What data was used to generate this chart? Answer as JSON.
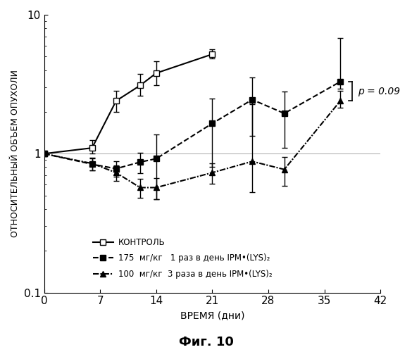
{
  "title": "Фиг. 10",
  "ylabel": "ОТНОСИТЕЛЬНЫЙ ОБЪЕМ ОПУХОЛИ",
  "xlabel": "ВРЕМЯ (дни)",
  "xlim": [
    0,
    42
  ],
  "ylim_log": [
    0.1,
    10
  ],
  "yticks": [
    0.1,
    1,
    10
  ],
  "xticks": [
    0,
    7,
    14,
    21,
    28,
    35,
    42
  ],
  "control": {
    "x": [
      0,
      6,
      9,
      12,
      14,
      21
    ],
    "y": [
      1.0,
      1.1,
      2.4,
      3.1,
      3.8,
      5.2
    ],
    "yerr_lo": [
      0.0,
      0.1,
      0.4,
      0.5,
      0.7,
      0.35
    ],
    "yerr_hi": [
      0.0,
      0.15,
      0.45,
      0.65,
      0.85,
      0.45
    ],
    "label": "КОНТРОЛЬ"
  },
  "series175": {
    "x": [
      0,
      6,
      9,
      12,
      14,
      21,
      26,
      30,
      37
    ],
    "y": [
      1.0,
      0.84,
      0.78,
      0.87,
      0.92,
      1.65,
      2.45,
      1.95,
      3.3
    ],
    "yerr_lo": [
      0.0,
      0.08,
      0.1,
      0.15,
      0.45,
      0.85,
      1.1,
      0.85,
      0.35
    ],
    "yerr_hi": [
      0.0,
      0.08,
      0.1,
      0.15,
      0.45,
      0.85,
      1.1,
      0.85,
      3.5
    ],
    "label": "175  мг/кг   1 раз в день IPM•(LYS)₂"
  },
  "series100": {
    "x": [
      0,
      6,
      9,
      12,
      14,
      21,
      26,
      30,
      37
    ],
    "y": [
      1.0,
      0.85,
      0.73,
      0.57,
      0.57,
      0.73,
      0.88,
      0.77,
      2.4
    ],
    "yerr_lo": [
      0.0,
      0.09,
      0.09,
      0.09,
      0.1,
      0.12,
      0.35,
      0.18,
      0.25
    ],
    "yerr_hi": [
      0.0,
      0.09,
      0.09,
      0.09,
      0.1,
      0.12,
      1.4,
      0.18,
      0.45
    ],
    "label": "100  мг/кг  3 раза в день IPM•(LYS)₂"
  },
  "p_annotation": "p = 0.09",
  "background": "#ffffff",
  "line_color": "#000000",
  "bracket_x": 38.5,
  "bracket_ytop": 3.3,
  "bracket_ybot": 2.4
}
